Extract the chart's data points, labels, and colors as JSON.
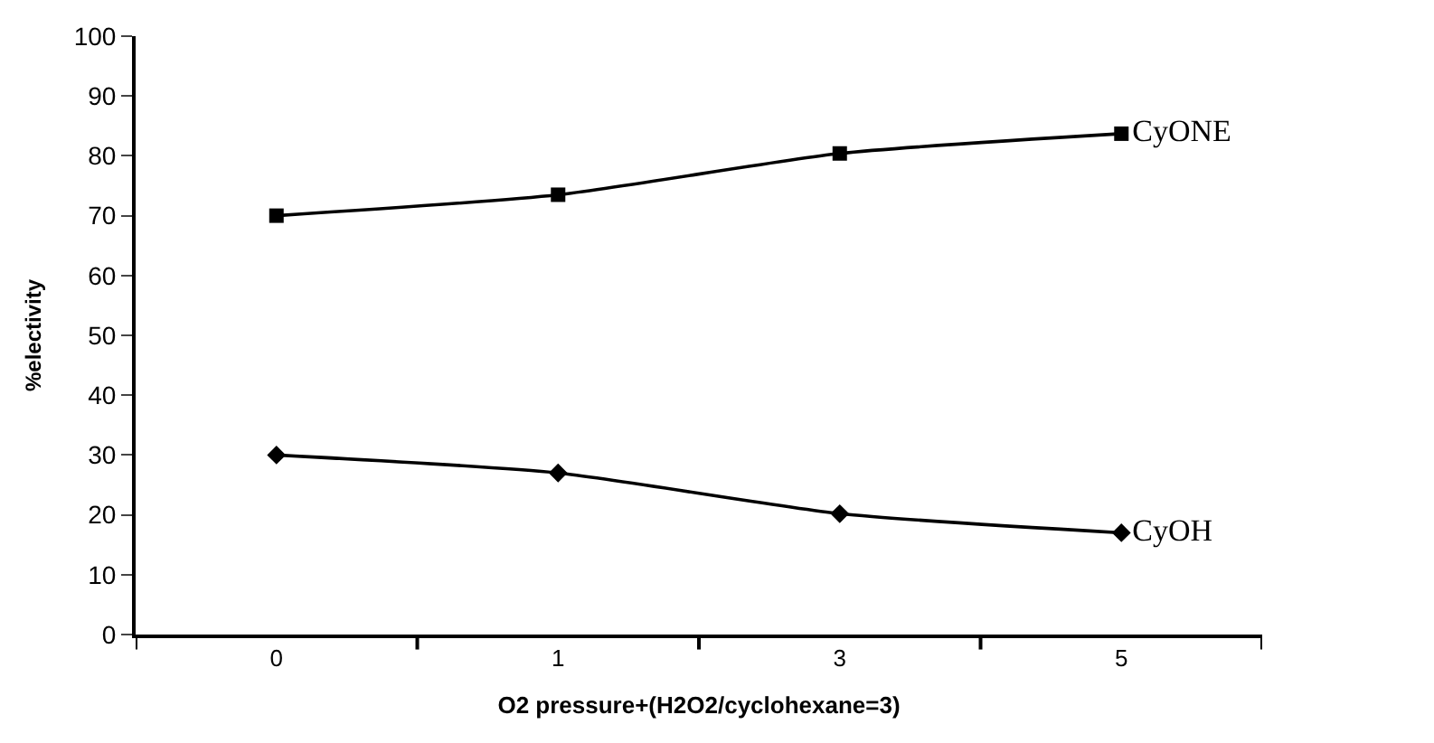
{
  "chart_data": {
    "type": "line",
    "xlabel": "O2 pressure+(H2O2/cyclohexane=3)",
    "ylabel": "%electivity",
    "categories": [
      "0",
      "1",
      "3",
      "5"
    ],
    "series": [
      {
        "name": "CyONE",
        "color": "#000000",
        "marker": "square",
        "values": [
          70,
          73.5,
          80.4,
          83.7
        ]
      },
      {
        "name": "CyOH",
        "color": "#000000",
        "marker": "diamond",
        "values": [
          30,
          27,
          20.2,
          17
        ]
      }
    ],
    "ylim": [
      0,
      100
    ],
    "yticks": [
      0,
      10,
      20,
      30,
      40,
      50,
      60,
      70,
      80,
      90,
      100
    ],
    "line_style": "solid"
  }
}
